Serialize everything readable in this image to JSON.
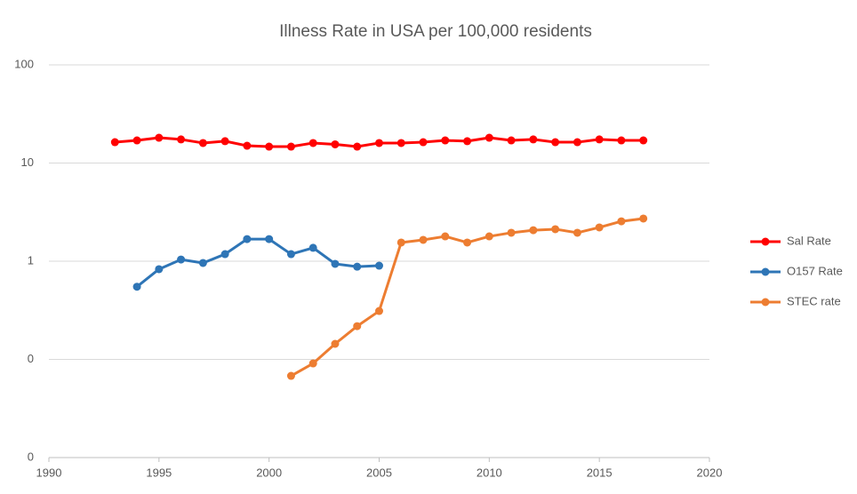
{
  "chart_data": {
    "type": "line",
    "title": "Illness Rate in USA per 100,000 residents",
    "x": [
      1993,
      1994,
      1995,
      1996,
      1997,
      1998,
      1999,
      2000,
      2001,
      2002,
      2003,
      2004,
      2005,
      2006,
      2007,
      2008,
      2009,
      2010,
      2011,
      2012,
      2013,
      2014,
      2015,
      2016,
      2017
    ],
    "series": [
      {
        "name": "Sal Rate",
        "color": "#ff0000",
        "values": [
          16.3,
          17.0,
          18.1,
          17.4,
          16.0,
          16.7,
          15.0,
          14.7,
          14.7,
          16.0,
          15.5,
          14.7,
          16.0,
          16.0,
          16.3,
          17.0,
          16.7,
          18.1,
          17.0,
          17.4,
          16.3,
          16.3,
          17.4,
          17.0,
          17.0
        ]
      },
      {
        "name": "O157 Rate",
        "color": "#2e75b6",
        "values": [
          null,
          0.55,
          0.83,
          1.04,
          0.96,
          1.18,
          1.68,
          1.68,
          1.18,
          1.37,
          0.94,
          0.88,
          0.9,
          null,
          null,
          null,
          null,
          null,
          null,
          null,
          null,
          null,
          null,
          null,
          null
        ]
      },
      {
        "name": "STEC rate",
        "color": "#ed7d31",
        "values": [
          null,
          null,
          null,
          null,
          null,
          null,
          null,
          null,
          0.068,
          0.091,
          0.144,
          0.218,
          0.311,
          1.55,
          1.65,
          1.79,
          1.55,
          1.79,
          1.95,
          2.07,
          2.12,
          1.95,
          2.21,
          2.55,
          2.72
        ]
      }
    ],
    "xlim": [
      1990,
      2020
    ],
    "xticks": [
      1990,
      1995,
      2000,
      2005,
      2010,
      2015,
      2020
    ],
    "ylim": [
      0.01,
      100
    ],
    "ylog": true,
    "yticks": [
      {
        "value": 0.01,
        "label": "0"
      },
      {
        "value": 0.1,
        "label": "0"
      },
      1,
      10,
      100
    ],
    "grid": true,
    "legend": "right"
  }
}
